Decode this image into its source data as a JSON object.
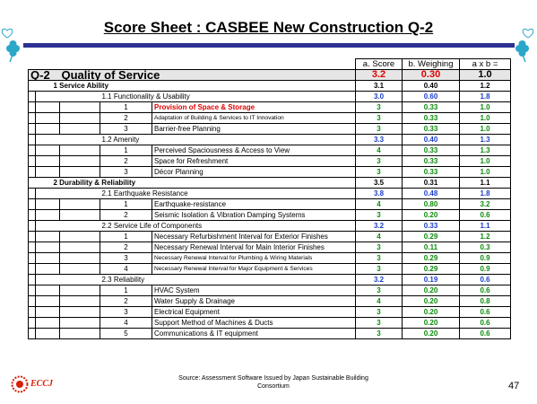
{
  "title": "Score Sheet : CASBEE New Construction Q-2",
  "header": {
    "score": "a. Score",
    "weighting": "b. Weighing",
    "product": "a x b ="
  },
  "q2": {
    "code": "Q-2",
    "label": "Quality of Service",
    "score": "3.2",
    "weighting": "0.30",
    "product": "1.0"
  },
  "rows": [
    {
      "level": 1,
      "label": "1 Service Ability",
      "score": "3.1",
      "weighting": "0.40",
      "product": "1.2"
    },
    {
      "level": 2,
      "label": "1.1 Functionality & Usability",
      "score": "3.0",
      "weighting": "0.60",
      "product": "1.8"
    },
    {
      "level": 3,
      "num": "1",
      "label": "Provision of Space & Storage",
      "score": "3",
      "weighting": "0.33",
      "product": "1.0",
      "highlight": true
    },
    {
      "level": 3,
      "num": "2",
      "label": "Adaptation of Building & Services to IT Innovation",
      "score": "3",
      "weighting": "0.33",
      "product": "1.0",
      "small": true
    },
    {
      "level": 3,
      "num": "3",
      "label": "Barrier-free Planning",
      "score": "3",
      "weighting": "0.33",
      "product": "1.0"
    },
    {
      "level": 2,
      "label": "1.2 Amenity",
      "score": "3.3",
      "weighting": "0.40",
      "product": "1.3"
    },
    {
      "level": 3,
      "num": "1",
      "label": "Perceived Spaciousness & Access to View",
      "score": "4",
      "weighting": "0.33",
      "product": "1.3"
    },
    {
      "level": 3,
      "num": "2",
      "label": "Space for Refreshment",
      "score": "3",
      "weighting": "0.33",
      "product": "1.0"
    },
    {
      "level": 3,
      "num": "3",
      "label": "Décor Planning",
      "score": "3",
      "weighting": "0.33",
      "product": "1.0"
    },
    {
      "level": 1,
      "label": "2 Durability & Reliability",
      "score": "3.5",
      "weighting": "0.31",
      "product": "1.1"
    },
    {
      "level": 2,
      "label": "2.1 Earthquake Resistance",
      "score": "3.8",
      "weighting": "0.48",
      "product": "1.8"
    },
    {
      "level": 3,
      "num": "1",
      "label": "Earthquake-resistance",
      "score": "4",
      "weighting": "0.80",
      "product": "3.2"
    },
    {
      "level": 3,
      "num": "2",
      "label": "Seismic Isolation & Vibration Damping Systems",
      "score": "3",
      "weighting": "0.20",
      "product": "0.6"
    },
    {
      "level": 2,
      "label": "2.2 Service Life of Components",
      "score": "3.2",
      "weighting": "0.33",
      "product": "1.1"
    },
    {
      "level": 3,
      "num": "1",
      "label": "Necessary Refurbishment Interval for Exterior Finishes",
      "score": "4",
      "weighting": "0.29",
      "product": "1.2"
    },
    {
      "level": 3,
      "num": "2",
      "label": "Necessary Renewal Interval for Main Interior Finishes",
      "score": "3",
      "weighting": "0.11",
      "product": "0.3"
    },
    {
      "level": 3,
      "num": "3",
      "label": "Necessary Renewal Interval for Plumbing & Wiring Materials",
      "score": "3",
      "weighting": "0.29",
      "product": "0.9",
      "small": true
    },
    {
      "level": 3,
      "num": "4",
      "label": "Necessary Renewal Interval for Major Equipment & Services",
      "score": "3",
      "weighting": "0.29",
      "product": "0.9",
      "small": true
    },
    {
      "level": 2,
      "label": "2.3 Reliability",
      "score": "3.2",
      "weighting": "0.19",
      "product": "0.6"
    },
    {
      "level": 3,
      "num": "1",
      "label": "HVAC System",
      "score": "3",
      "weighting": "0.20",
      "product": "0.6"
    },
    {
      "level": 3,
      "num": "2",
      "label": "Water Supply & Drainage",
      "score": "4",
      "weighting": "0.20",
      "product": "0.8"
    },
    {
      "level": 3,
      "num": "3",
      "label": "Electrical Equipment",
      "score": "3",
      "weighting": "0.20",
      "product": "0.6"
    },
    {
      "level": 3,
      "num": "4",
      "label": "Support Method of Machines & Ducts",
      "score": "3",
      "weighting": "0.20",
      "product": "0.6"
    },
    {
      "level": 3,
      "num": "5",
      "label": "Communications & IT equipment",
      "score": "3",
      "weighting": "0.20",
      "product": "0.6"
    }
  ],
  "footer": {
    "source_line1": "Source: Assessment Software Issued by Japan Sustainable Building",
    "source_line2": "Consortium",
    "page_number": "47",
    "logo_text": "ECCJ"
  },
  "colors": {
    "title_rule": "#2e3192",
    "green": "#0a8a0a",
    "blue": "#1b3ec8",
    "red": "#e00000",
    "grey_row": "#e6e6e6"
  },
  "icons": [
    "clover-icon",
    "heart-icon",
    "eccj-logo-icon"
  ]
}
